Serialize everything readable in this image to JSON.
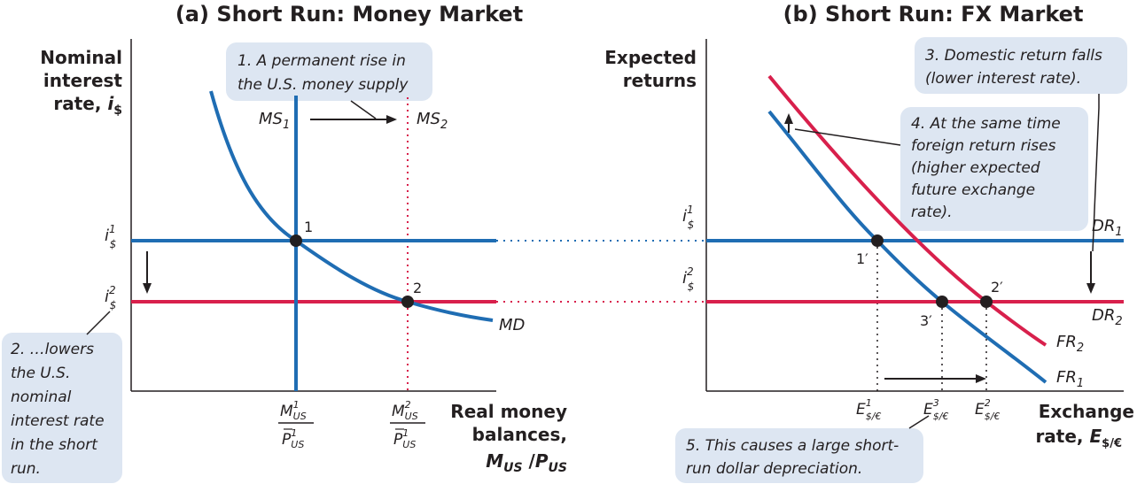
{
  "panels": {
    "left_title": "(a) Short Run: Money Market",
    "right_title": "(b) Short Run: FX Market"
  },
  "left_axes": {
    "y_title_lines": [
      "Nominal",
      "interest"
    ],
    "y_title_rate": "rate, ",
    "y_title_symbol": "i",
    "y_title_sub": "$",
    "x_title_lines": [
      "Real money",
      "balances,"
    ],
    "x_title_m": "M",
    "x_title_m_sub": "US",
    "x_title_slash": " /",
    "x_title_p": "P",
    "x_title_p_sub": "US"
  },
  "right_axes": {
    "y_title_lines": [
      "Expected",
      "returns"
    ],
    "x_title_line1": "Exchange",
    "x_title_rate": "rate, ",
    "x_title_symbol": "E",
    "x_title_sub": "$/€"
  },
  "ticks": {
    "i": "i",
    "i_sub": "$",
    "i1_sup": "1",
    "i2_sup": "2",
    "M": "M",
    "P": "P",
    "US": "US",
    "m1_sup": "1",
    "m2_sup": "2",
    "E": "E",
    "E_sub": "$/€",
    "e1_sup": "1",
    "e2_sup": "3",
    "e3_sup": "2"
  },
  "curves": {
    "ms1": "MS",
    "ms1_sub": "1",
    "ms2": "MS",
    "ms2_sub": "2",
    "md": "MD",
    "dr1": "DR",
    "dr1_sub": "1",
    "dr2": "DR",
    "dr2_sub": "2",
    "fr1": "FR",
    "fr1_sub": "1",
    "fr2": "FR",
    "fr2_sub": "2"
  },
  "points": {
    "p1": "1",
    "p2": "2",
    "p1p": "1′",
    "p3p": "3′",
    "p2p": "2′"
  },
  "notes": {
    "note1": [
      "1. A permanent rise in",
      "the U.S. money supply"
    ],
    "note2": [
      "2. …lowers",
      "the U.S.",
      "nominal",
      "interest rate",
      "in the short",
      "run."
    ],
    "note3": [
      "3. Domestic return falls",
      "(lower interest rate)."
    ],
    "note4": [
      "4. At the same time",
      "foreign return rises",
      "(higher expected",
      "future exchange",
      "rate)."
    ],
    "note5": [
      "5. This causes a large short-",
      "run dollar depreciation."
    ]
  },
  "colors": {
    "blue": "#1f6db3",
    "red": "#d8204c",
    "note_bg": "#dde6f2",
    "ink": "#231f20"
  }
}
